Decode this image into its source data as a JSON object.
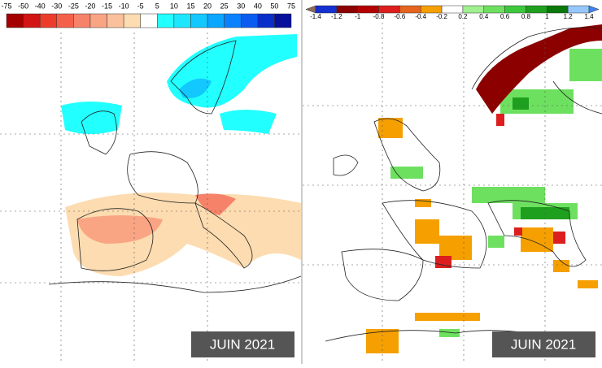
{
  "left_map": {
    "legend": {
      "labels": [
        "-75",
        "-50",
        "-40",
        "-30",
        "-25",
        "-20",
        "-15",
        "-10",
        "-5",
        "5",
        "10",
        "15",
        "20",
        "25",
        "30",
        "40",
        "50",
        "75"
      ],
      "colors": [
        "#a50000",
        "#d21414",
        "#ee3c2c",
        "#f4614a",
        "#f7826a",
        "#f9a584",
        "#fbc19c",
        "#fcdcb0",
        "#ffffff",
        "#22ffff",
        "#1de6ff",
        "#12c8ff",
        "#0aa6ff",
        "#0a82ff",
        "#0a5cf0",
        "#0a2ec8",
        "#06109a"
      ]
    },
    "caption": "JUIN 2021"
  },
  "right_map": {
    "legend": {
      "labels": [
        "-1.4",
        "-1.2",
        "-1",
        "-0.8",
        "-0.6",
        "-0.4",
        "-0.2",
        "0.2",
        "0.4",
        "0.6",
        "0.8",
        "1",
        "1.2",
        "1.4"
      ],
      "colors": [
        "#8c6a5c",
        "#1430d0",
        "#8c0000",
        "#b40000",
        "#dc1e1e",
        "#e6641e",
        "#f5a000",
        "#ffffff",
        "#a0f090",
        "#6ee060",
        "#3cc83c",
        "#1ea01e",
        "#0a780a",
        "#96c8ff",
        "#3c82f0"
      ]
    },
    "caption": "JUIN 2021"
  }
}
